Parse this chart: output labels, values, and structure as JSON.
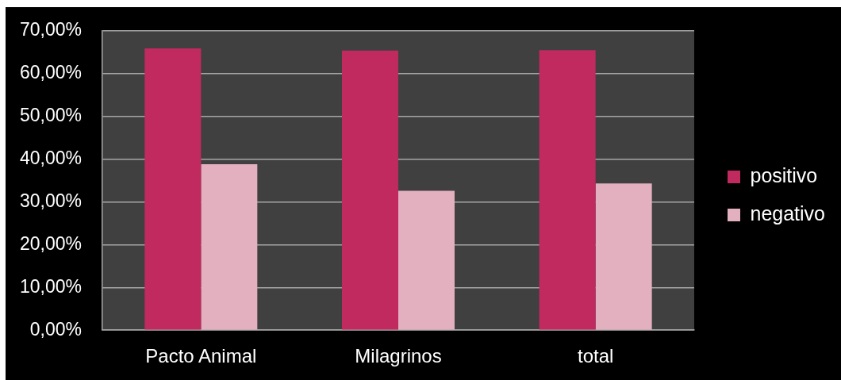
{
  "chart_data": {
    "type": "bar",
    "categories": [
      "Pacto Animal",
      "Milagrinos",
      "total"
    ],
    "series": [
      {
        "name": "positivo",
        "color": "#c02a5f",
        "values": [
          65.9,
          65.4,
          65.5
        ]
      },
      {
        "name": "negativo",
        "color": "#e3b0bf",
        "values": [
          38.8,
          32.6,
          34.3
        ]
      }
    ],
    "ylim": [
      0,
      70
    ],
    "yticks": [
      {
        "value": 0,
        "label": "0,00%"
      },
      {
        "value": 10,
        "label": "10,00%"
      },
      {
        "value": 20,
        "label": "20,00%"
      },
      {
        "value": 30,
        "label": "30,00%"
      },
      {
        "value": 40,
        "label": "40,00%"
      },
      {
        "value": 50,
        "label": "50,00%"
      },
      {
        "value": 60,
        "label": "60,00%"
      },
      {
        "value": 70,
        "label": "70,00%"
      }
    ],
    "grid": "y",
    "legend": "right"
  }
}
